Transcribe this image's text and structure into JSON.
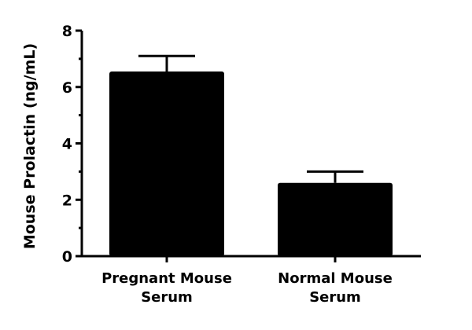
{
  "chart_data": {
    "type": "bar",
    "title": "",
    "xlabel": "",
    "ylabel": "Mouse Prolactin (ng/mL)",
    "categories": [
      "Pregnant Mouse Serum",
      "Normal Mouse Serum"
    ],
    "category_lines": [
      [
        "Pregnant Mouse",
        "Serum"
      ],
      [
        "Normal Mouse",
        "Serum"
      ]
    ],
    "values": [
      6.55,
      2.6
    ],
    "error_upper": [
      0.55,
      0.4
    ],
    "ylim": [
      0,
      8
    ],
    "yticks": [
      0,
      2,
      4,
      6,
      8
    ],
    "minor_ticks": [
      1,
      3,
      5,
      7
    ],
    "grid": false,
    "legend": null,
    "bar_color": "#000000"
  }
}
